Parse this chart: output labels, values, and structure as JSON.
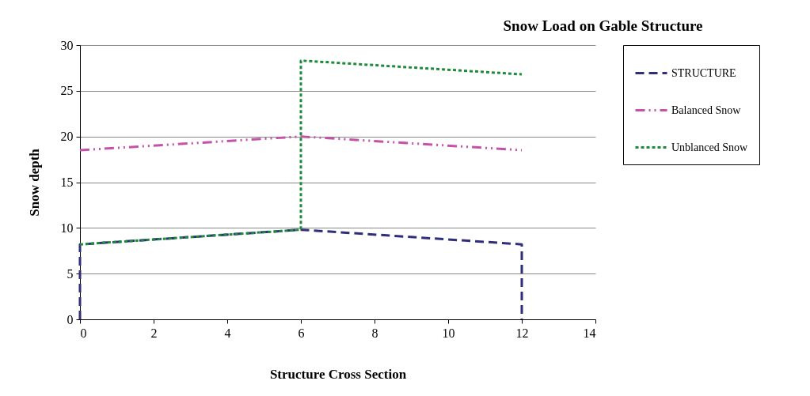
{
  "chart_data": {
    "type": "line",
    "title": "Snow Load on Gable Structure",
    "xlabel": "Structure Cross Section",
    "ylabel": "Snow depth",
    "xlim": [
      0,
      14
    ],
    "xticks": [
      0,
      2,
      4,
      6,
      8,
      10,
      12,
      14
    ],
    "ylim": [
      0,
      30
    ],
    "yticks": [
      0,
      5,
      10,
      15,
      20,
      25,
      30
    ],
    "grid": "y",
    "legend": "right",
    "marker": "none",
    "series": [
      {
        "name": "STRUCTURE",
        "color": "#2e2e7a",
        "line_style": "dashed",
        "x": [
          0,
          0,
          6,
          12,
          12
        ],
        "values": [
          0,
          8.2,
          9.8,
          8.2,
          0
        ]
      },
      {
        "name": "Balanced Snow",
        "color": "#c552a8",
        "line_style": "dashdot",
        "x": [
          0,
          6,
          12
        ],
        "values": [
          18.5,
          20,
          18.5
        ]
      },
      {
        "name": "Unblanced Snow",
        "color": "#1e8a3c",
        "line_style": "dotted",
        "x": [
          0,
          6,
          6,
          12
        ],
        "values": [
          8.2,
          9.8,
          28.3,
          26.8
        ]
      }
    ]
  }
}
